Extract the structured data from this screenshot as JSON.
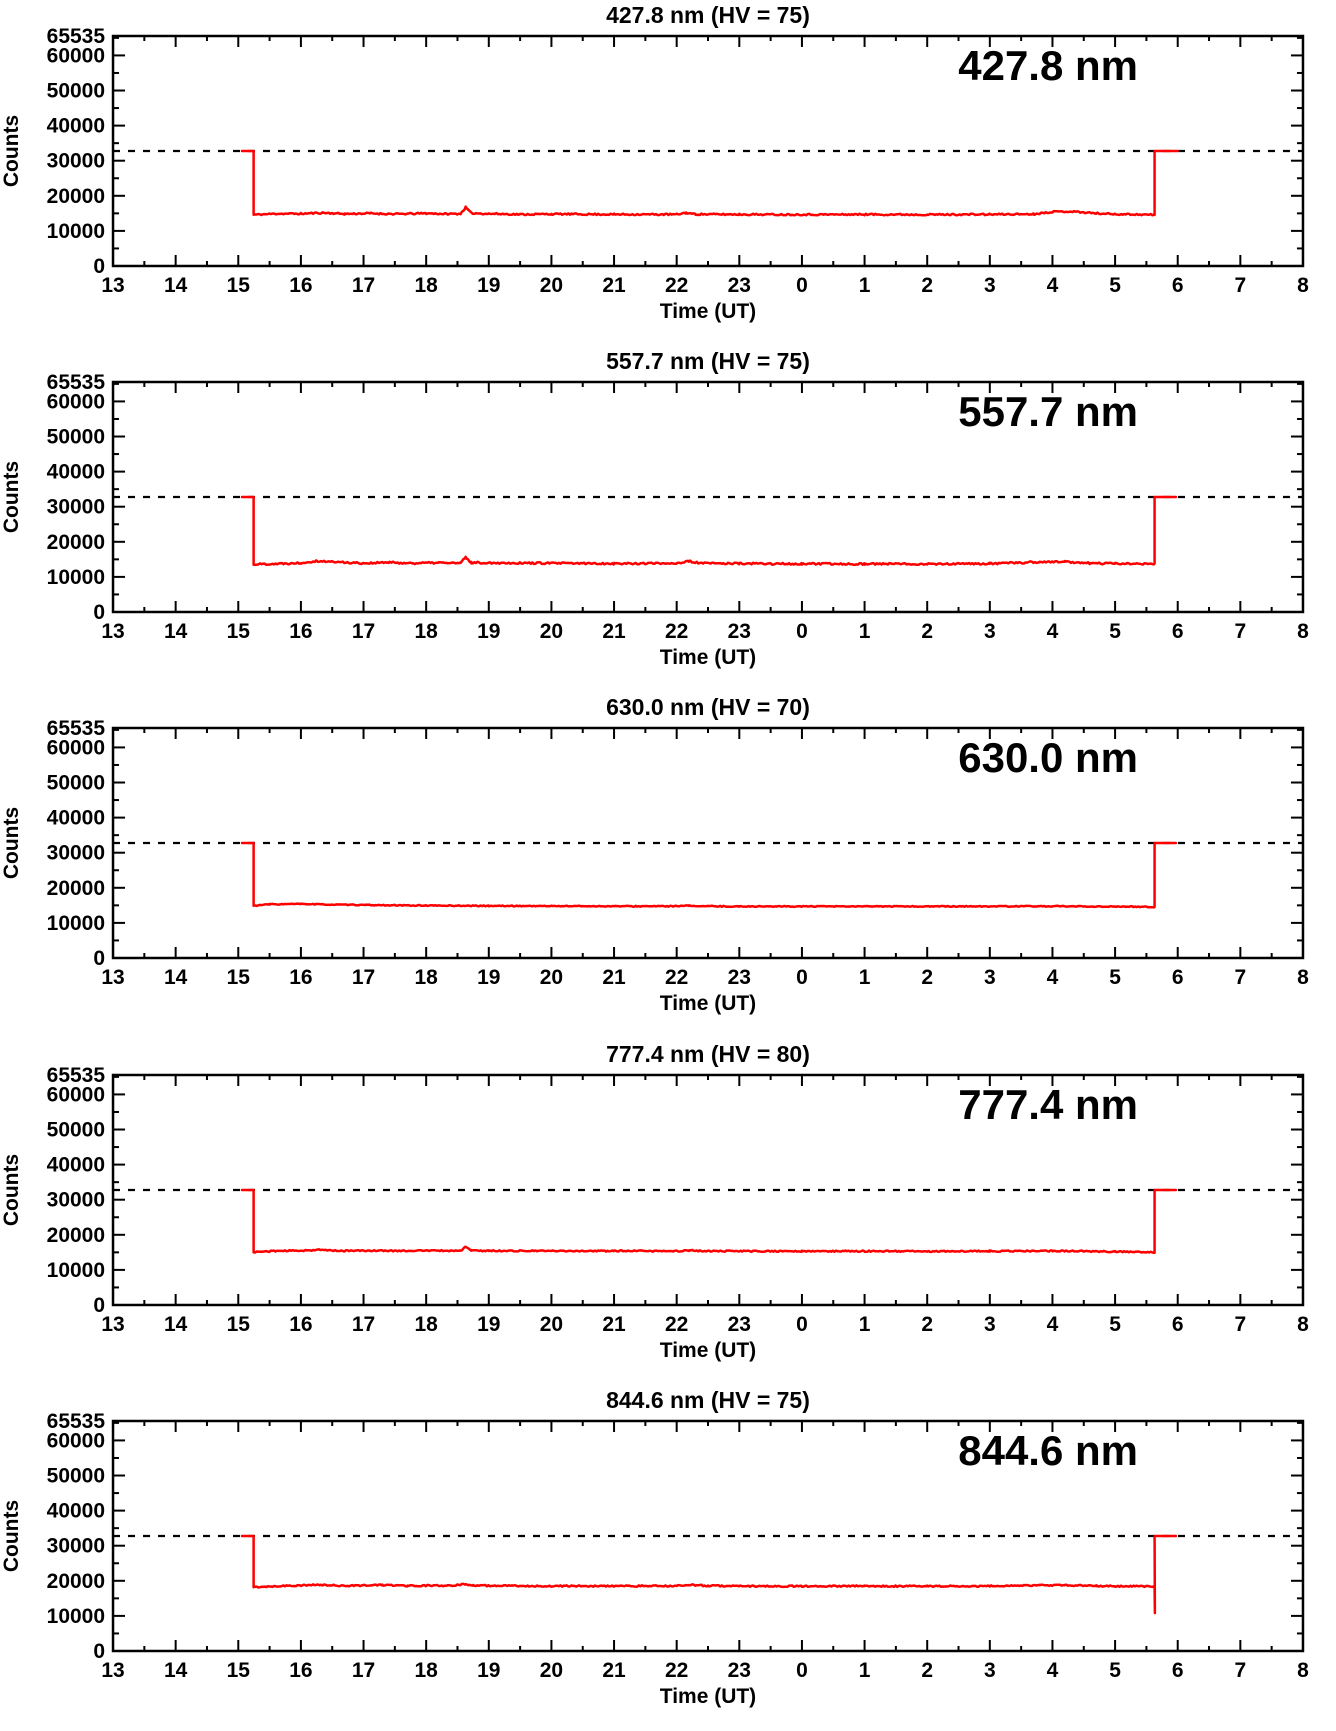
{
  "page": {
    "background": "#ffffff"
  },
  "colors": {
    "series": "#ff0000",
    "axis": "#000000",
    "threshold": "#000000"
  },
  "axes": {
    "xlabel": "Time (UT)",
    "ylabel": "Counts",
    "x_min": 13,
    "x_max": 32,
    "x_major_step": 1,
    "x_minor_step": 0.5,
    "x_tick_labels": [
      "13",
      "14",
      "15",
      "16",
      "17",
      "18",
      "19",
      "20",
      "21",
      "22",
      "23",
      "0",
      "1",
      "2",
      "3",
      "4",
      "5",
      "6",
      "7",
      "8"
    ],
    "y_min": 0,
    "y_max": 65535,
    "y_major_ticks": [
      10000,
      20000,
      30000,
      40000,
      50000,
      60000
    ],
    "y_minor_ticks": [
      5000,
      15000,
      25000,
      35000,
      45000,
      55000,
      65000
    ],
    "y_labels": [
      {
        "value": 0,
        "label": "0"
      },
      {
        "value": 10000,
        "label": "10000"
      },
      {
        "value": 20000,
        "label": "20000"
      },
      {
        "value": 30000,
        "label": "30000"
      },
      {
        "value": 40000,
        "label": "40000"
      },
      {
        "value": 50000,
        "label": "50000"
      },
      {
        "value": 60000,
        "label": "60000"
      },
      {
        "value": 65535,
        "label": "65535"
      }
    ],
    "grid": false,
    "legend": "none",
    "threshold_value": 32767,
    "threshold_style": "dashed"
  },
  "chart_data": [
    {
      "type": "line",
      "title": "427.8 nm (HV = 75)",
      "wavelength_label": "427.8 nm",
      "hv": 75,
      "series_name": "counts",
      "series_color": "#ff0000",
      "saturation_level": 32767,
      "on_start": [
        15.06,
        15.245
      ],
      "on_end": [
        29.63,
        30.0
      ],
      "end_spike": null,
      "baseline_anchors": [
        [
          15.245,
          14600
        ],
        [
          15.6,
          14900
        ],
        [
          16.0,
          14900
        ],
        [
          16.35,
          15150
        ],
        [
          16.7,
          14850
        ],
        [
          17.1,
          15000
        ],
        [
          17.5,
          14800
        ],
        [
          18.0,
          15000
        ],
        [
          18.3,
          14850
        ],
        [
          18.55,
          14900
        ],
        [
          18.63,
          16700
        ],
        [
          18.72,
          15050
        ],
        [
          19.0,
          14900
        ],
        [
          19.5,
          14700
        ],
        [
          20.0,
          14800
        ],
        [
          21.0,
          14700
        ],
        [
          22.0,
          14700
        ],
        [
          22.15,
          15150
        ],
        [
          22.3,
          14750
        ],
        [
          23.0,
          14700
        ],
        [
          24.0,
          14650
        ],
        [
          25.0,
          14700
        ],
        [
          26.0,
          14650
        ],
        [
          27.0,
          14700
        ],
        [
          27.7,
          14800
        ],
        [
          28.0,
          15450
        ],
        [
          28.3,
          15550
        ],
        [
          28.7,
          15000
        ],
        [
          29.0,
          14800
        ],
        [
          29.3,
          14700
        ],
        [
          29.63,
          14600
        ]
      ],
      "noise": 220,
      "seed": 11
    },
    {
      "type": "line",
      "title": "557.7 nm (HV = 75)",
      "wavelength_label": "557.7 nm",
      "hv": 75,
      "series_name": "counts",
      "series_color": "#ff0000",
      "saturation_level": 32767,
      "on_start": [
        15.06,
        15.245
      ],
      "on_end": [
        29.63,
        29.97
      ],
      "end_spike": null,
      "baseline_anchors": [
        [
          15.245,
          13600
        ],
        [
          15.7,
          13800
        ],
        [
          16.0,
          14000
        ],
        [
          16.25,
          14550
        ],
        [
          16.55,
          14250
        ],
        [
          17.0,
          13900
        ],
        [
          17.4,
          14100
        ],
        [
          17.8,
          13900
        ],
        [
          18.2,
          14050
        ],
        [
          18.55,
          13900
        ],
        [
          18.63,
          15600
        ],
        [
          18.72,
          14050
        ],
        [
          19.2,
          14000
        ],
        [
          20.0,
          13900
        ],
        [
          21.0,
          13800
        ],
        [
          22.0,
          13900
        ],
        [
          22.2,
          14400
        ],
        [
          22.4,
          13900
        ],
        [
          23.0,
          13800
        ],
        [
          24.0,
          13700
        ],
        [
          25.0,
          13700
        ],
        [
          26.0,
          13700
        ],
        [
          27.0,
          13750
        ],
        [
          27.8,
          14250
        ],
        [
          28.2,
          14300
        ],
        [
          28.6,
          13900
        ],
        [
          29.0,
          13800
        ],
        [
          29.63,
          13700
        ]
      ],
      "noise": 260,
      "seed": 22
    },
    {
      "type": "line",
      "title": "630.0 nm (HV = 70)",
      "wavelength_label": "630.0 nm",
      "hv": 70,
      "series_name": "counts",
      "series_color": "#ff0000",
      "saturation_level": 32767,
      "on_start": [
        15.06,
        15.245
      ],
      "on_end": [
        29.63,
        29.97
      ],
      "end_spike": null,
      "baseline_anchors": [
        [
          15.245,
          14900
        ],
        [
          15.5,
          15300
        ],
        [
          16.0,
          15400
        ],
        [
          16.5,
          15200
        ],
        [
          17.0,
          15100
        ],
        [
          17.5,
          15000
        ],
        [
          18.0,
          14950
        ],
        [
          19.0,
          14850
        ],
        [
          20.0,
          14800
        ],
        [
          21.0,
          14750
        ],
        [
          22.0,
          14750
        ],
        [
          22.2,
          14900
        ],
        [
          22.5,
          14750
        ],
        [
          23.0,
          14700
        ],
        [
          25.0,
          14700
        ],
        [
          27.0,
          14700
        ],
        [
          28.0,
          14750
        ],
        [
          29.0,
          14650
        ],
        [
          29.63,
          14550
        ]
      ],
      "noise": 130,
      "seed": 33
    },
    {
      "type": "line",
      "title": "777.4 nm (HV = 80)",
      "wavelength_label": "777.4 nm",
      "hv": 80,
      "series_name": "counts",
      "series_color": "#ff0000",
      "saturation_level": 32767,
      "on_start": [
        15.06,
        15.245
      ],
      "on_end": [
        29.63,
        29.97
      ],
      "end_spike": null,
      "baseline_anchors": [
        [
          15.245,
          15100
        ],
        [
          15.6,
          15400
        ],
        [
          16.0,
          15500
        ],
        [
          16.3,
          15700
        ],
        [
          16.7,
          15400
        ],
        [
          17.0,
          15500
        ],
        [
          17.5,
          15450
        ],
        [
          18.0,
          15500
        ],
        [
          18.55,
          15450
        ],
        [
          18.63,
          16600
        ],
        [
          18.72,
          15500
        ],
        [
          19.0,
          15450
        ],
        [
          20.0,
          15400
        ],
        [
          21.0,
          15400
        ],
        [
          22.0,
          15350
        ],
        [
          22.2,
          15550
        ],
        [
          22.5,
          15350
        ],
        [
          23.0,
          15350
        ],
        [
          24.0,
          15300
        ],
        [
          25.0,
          15350
        ],
        [
          26.0,
          15300
        ],
        [
          27.0,
          15350
        ],
        [
          28.0,
          15400
        ],
        [
          28.5,
          15350
        ],
        [
          29.0,
          15200
        ],
        [
          29.3,
          15100
        ],
        [
          29.63,
          15000
        ]
      ],
      "noise": 180,
      "seed": 44
    },
    {
      "type": "line",
      "title": "844.6 nm (HV = 75)",
      "wavelength_label": "844.6 nm",
      "hv": 75,
      "series_name": "counts",
      "series_color": "#ff0000",
      "saturation_level": 32767,
      "on_start": [
        15.06,
        15.245
      ],
      "on_end": [
        29.63,
        29.97
      ],
      "end_spike": 10800,
      "baseline_anchors": [
        [
          15.245,
          18200
        ],
        [
          15.6,
          18500
        ],
        [
          16.0,
          18700
        ],
        [
          16.3,
          18800
        ],
        [
          16.7,
          18600
        ],
        [
          17.0,
          18700
        ],
        [
          17.3,
          18800
        ],
        [
          17.7,
          18600
        ],
        [
          18.0,
          18650
        ],
        [
          18.4,
          18550
        ],
        [
          18.63,
          19100
        ],
        [
          18.75,
          18650
        ],
        [
          19.0,
          18600
        ],
        [
          19.5,
          18550
        ],
        [
          20.0,
          18500
        ],
        [
          21.0,
          18500
        ],
        [
          22.0,
          18550
        ],
        [
          22.2,
          18850
        ],
        [
          22.5,
          18600
        ],
        [
          23.0,
          18500
        ],
        [
          24.0,
          18450
        ],
        [
          25.0,
          18500
        ],
        [
          26.0,
          18450
        ],
        [
          27.0,
          18500
        ],
        [
          27.8,
          18700
        ],
        [
          28.2,
          18750
        ],
        [
          28.7,
          18550
        ],
        [
          29.0,
          18500
        ],
        [
          29.4,
          18450
        ],
        [
          29.63,
          18400
        ]
      ],
      "noise": 200,
      "seed": 55
    }
  ]
}
